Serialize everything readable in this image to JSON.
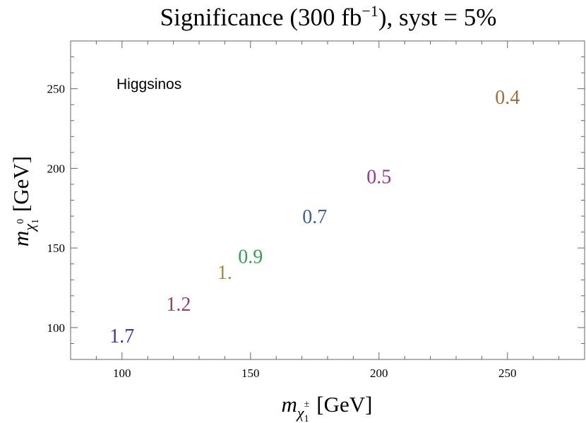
{
  "chart_data": {
    "type": "scatter",
    "title": "Significance (300 fb",
    "title_sup": "−1",
    "title_tail": "), syst = 5%",
    "xlabel": {
      "symbol": "m",
      "sub": "χ",
      "subsub": "1",
      "sup": "±",
      "unit": "[GeV]"
    },
    "ylabel": {
      "symbol": "m",
      "sub": "χ",
      "subsub": "1",
      "sup": "0",
      "unit": "[GeV]"
    },
    "xlim": [
      80,
      280
    ],
    "ylim": [
      80,
      280
    ],
    "x_ticks": [
      100,
      150,
      200,
      250
    ],
    "y_ticks": [
      100,
      150,
      200,
      250
    ],
    "x_tick_labels": [
      "100",
      "150",
      "200",
      "250"
    ],
    "y_tick_labels": [
      "100",
      "150",
      "200",
      "250"
    ],
    "grid": false,
    "annotation": "Higgsinos",
    "points": [
      {
        "x": 100,
        "y": 95,
        "label": "1.7",
        "color": "#3b3b9a"
      },
      {
        "x": 122,
        "y": 115,
        "label": "1.2",
        "color": "#9b3a6e"
      },
      {
        "x": 140,
        "y": 135,
        "label": "1.",
        "color": "#a08a4a"
      },
      {
        "x": 150,
        "y": 145,
        "label": "0.9",
        "color": "#3c9a5a"
      },
      {
        "x": 175,
        "y": 170,
        "label": "0.7",
        "color": "#3f5f9a"
      },
      {
        "x": 200,
        "y": 195,
        "label": "0.5",
        "color": "#a0368a"
      },
      {
        "x": 250,
        "y": 245,
        "label": "0.4",
        "color": "#a07040"
      }
    ]
  }
}
